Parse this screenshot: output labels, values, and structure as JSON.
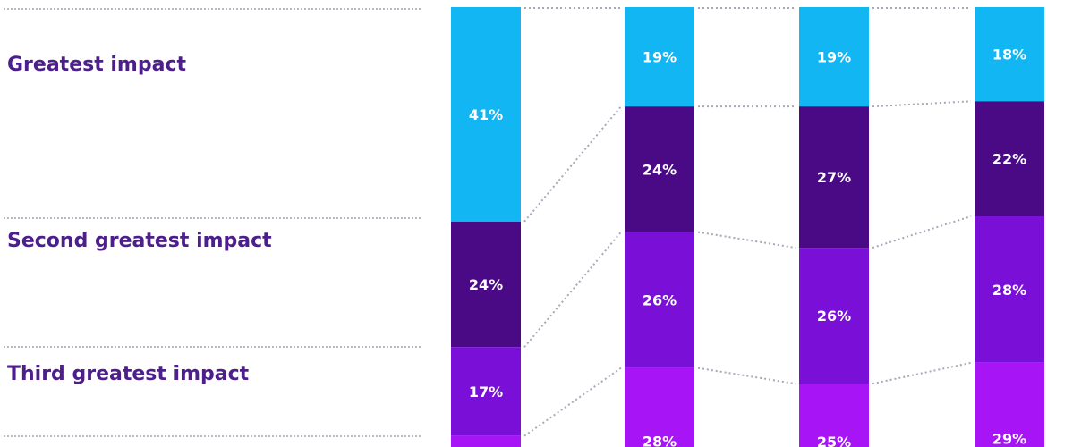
{
  "colors": {
    "greatest": "#12b6f2",
    "second": "#4a0a86",
    "third": "#7a10d8",
    "fourth": "#a714f5",
    "label": "#4d1f8c",
    "connector": "#a8a8b8",
    "value_text": "#ffffff"
  },
  "row_labels": {
    "greatest": "Greatest impact",
    "second": "Second greatest impact",
    "third": "Third greatest impact"
  },
  "chart_data": {
    "type": "bar",
    "stacked": true,
    "categories": [
      "",
      "",
      "",
      ""
    ],
    "series": [
      {
        "key": "greatest",
        "values": [
          41,
          19,
          19,
          18
        ],
        "labels": [
          "41%",
          "19%",
          "19%",
          "18%"
        ]
      },
      {
        "key": "second",
        "values": [
          24,
          24,
          27,
          22
        ],
        "labels": [
          "24%",
          "24%",
          "27%",
          "22%"
        ]
      },
      {
        "key": "third",
        "values": [
          17,
          26,
          26,
          28
        ],
        "labels": [
          "17%",
          "26%",
          "26%",
          "28%"
        ]
      },
      {
        "key": "fourth",
        "values": [
          null,
          28,
          25,
          29
        ],
        "labels": [
          "",
          "28%",
          "25%",
          "29%"
        ]
      }
    ],
    "grid": false,
    "legend": "none"
  }
}
